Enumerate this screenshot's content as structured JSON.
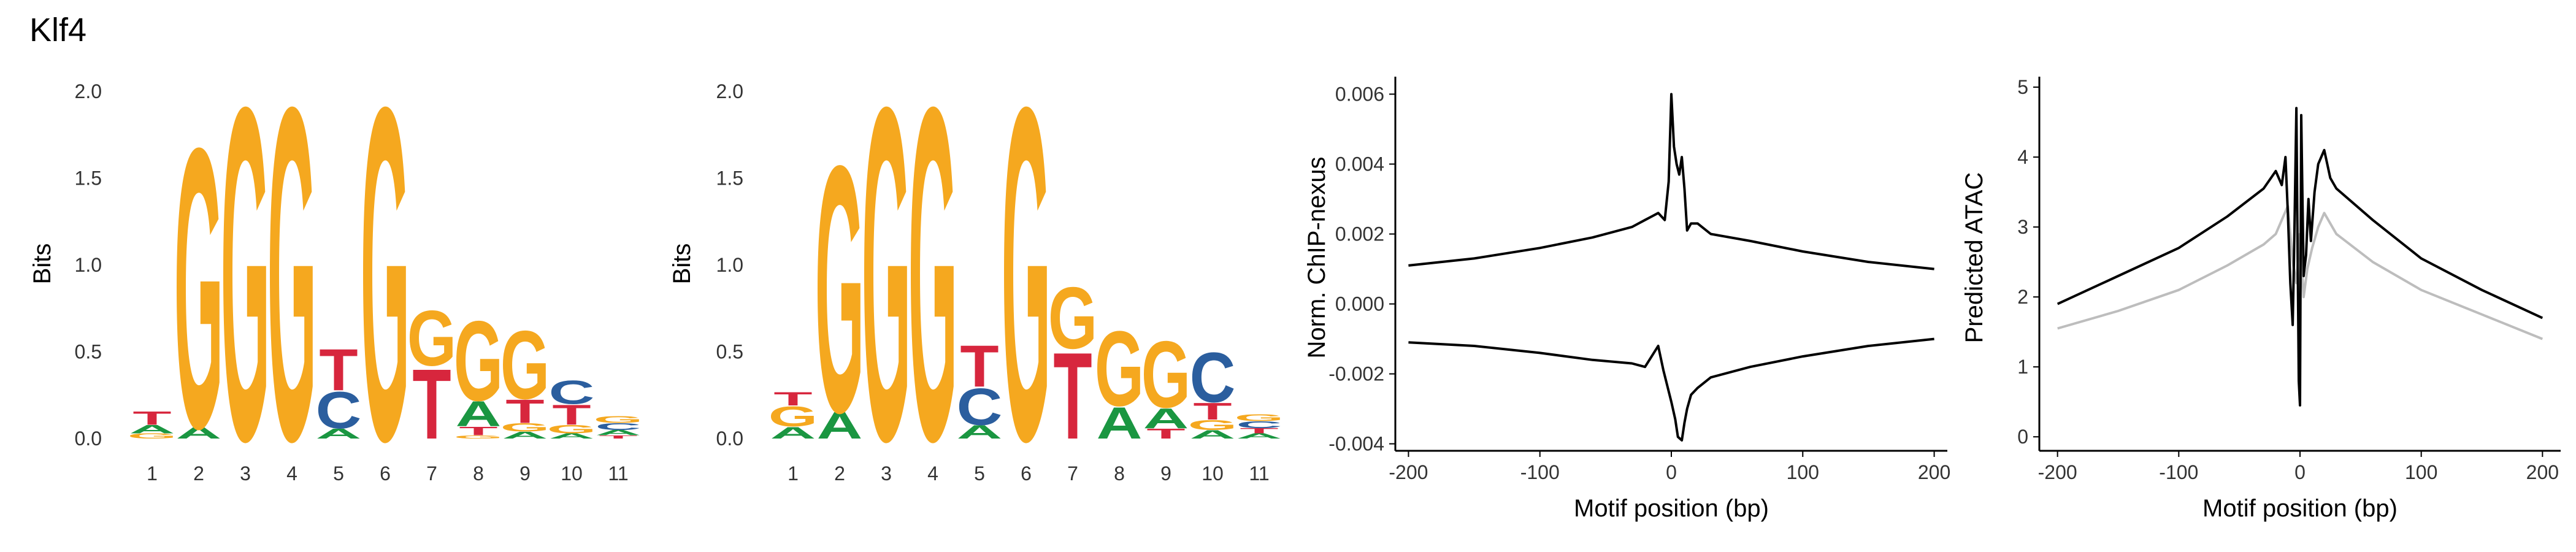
{
  "figure": {
    "title": "Klf4"
  },
  "chart_data": [
    {
      "type": "sequence-logo",
      "ylabel": "Bits",
      "ylim": [
        0,
        2.0
      ],
      "yticks": [
        "0.0",
        "0.5",
        "1.0",
        "1.5",
        "2.0"
      ],
      "xticks": [
        "1",
        "2",
        "3",
        "4",
        "5",
        "6",
        "7",
        "8",
        "9",
        "10",
        "11"
      ],
      "colors": {
        "A": "#1a9641",
        "C": "#2b5e9e",
        "G": "#f5a81f",
        "T": "#d7263d"
      },
      "positions": [
        [
          [
            "G",
            0.03
          ],
          [
            "A",
            0.05
          ],
          [
            "T",
            0.08
          ]
        ],
        [
          [
            "A",
            0.07
          ],
          [
            "G",
            1.68
          ]
        ],
        [
          [
            "G",
            2.0
          ]
        ],
        [
          [
            "G",
            2.0
          ]
        ],
        [
          [
            "A",
            0.06
          ],
          [
            "C",
            0.22
          ],
          [
            "T",
            0.25
          ]
        ],
        [
          [
            "G",
            2.0
          ]
        ],
        [
          [
            "T",
            0.42
          ],
          [
            "G",
            0.33
          ]
        ],
        [
          [
            "G",
            0.02
          ],
          [
            "T",
            0.05
          ],
          [
            "A",
            0.15
          ],
          [
            "G",
            0.48
          ]
        ],
        [
          [
            "A",
            0.04
          ],
          [
            "G",
            0.05
          ],
          [
            "T",
            0.14
          ],
          [
            "G",
            0.41
          ]
        ],
        [
          [
            "A",
            0.03
          ],
          [
            "G",
            0.05
          ],
          [
            "T",
            0.12
          ],
          [
            "C",
            0.14
          ]
        ],
        [
          [
            "T",
            0.02
          ],
          [
            "A",
            0.03
          ],
          [
            "C",
            0.04
          ],
          [
            "G",
            0.04
          ]
        ]
      ]
    },
    {
      "type": "sequence-logo",
      "ylabel": "Bits",
      "ylim": [
        0,
        2.0
      ],
      "yticks": [
        "0.0",
        "0.5",
        "1.0",
        "1.5",
        "2.0"
      ],
      "xticks": [
        "1",
        "2",
        "3",
        "4",
        "5",
        "6",
        "7",
        "8",
        "9",
        "10",
        "11"
      ],
      "colors": {
        "A": "#1a9641",
        "C": "#2b5e9e",
        "G": "#f5a81f",
        "T": "#d7263d"
      },
      "positions": [
        [
          [
            "A",
            0.07
          ],
          [
            "G",
            0.12
          ],
          [
            "T",
            0.08
          ]
        ],
        [
          [
            "A",
            0.16
          ],
          [
            "G",
            1.48
          ]
        ],
        [
          [
            "G",
            2.0
          ]
        ],
        [
          [
            "G",
            2.0
          ]
        ],
        [
          [
            "A",
            0.08
          ],
          [
            "C",
            0.22
          ],
          [
            "T",
            0.25
          ]
        ],
        [
          [
            "G",
            2.0
          ]
        ],
        [
          [
            "T",
            0.52
          ],
          [
            "G",
            0.37
          ]
        ],
        [
          [
            "A",
            0.19
          ],
          [
            "G",
            0.45
          ]
        ],
        [
          [
            "T",
            0.06
          ],
          [
            "A",
            0.12
          ],
          [
            "G",
            0.4
          ]
        ],
        [
          [
            "A",
            0.05
          ],
          [
            "G",
            0.06
          ],
          [
            "T",
            0.1
          ],
          [
            "C",
            0.3
          ]
        ],
        [
          [
            "A",
            0.03
          ],
          [
            "T",
            0.03
          ],
          [
            "C",
            0.04
          ],
          [
            "G",
            0.04
          ]
        ]
      ]
    },
    {
      "type": "line",
      "xlabel": "Motif position (bp)",
      "ylabel": "Norm. ChIP-nexus",
      "xlim": [
        -210,
        210
      ],
      "ylim": [
        -0.0042,
        0.0065
      ],
      "xticks": [
        -200,
        -100,
        0,
        100,
        200
      ],
      "xticklabels": [
        "-200",
        "-100",
        "0",
        "100",
        "200"
      ],
      "yticks": [
        -0.004,
        -0.002,
        0.0,
        0.002,
        0.004,
        0.006
      ],
      "yticklabels": [
        "-0.004",
        "-0.002",
        "0.000",
        "0.002",
        "0.004",
        "0.006"
      ],
      "series": [
        {
          "color": "#000000",
          "x": [
            -200,
            -150,
            -100,
            -60,
            -30,
            -20,
            -15,
            -10,
            -5,
            -2,
            0,
            2,
            4,
            6,
            8,
            10,
            12,
            15,
            20,
            30,
            60,
            100,
            150,
            200
          ],
          "y": [
            0.0011,
            0.0013,
            0.0016,
            0.0019,
            0.0022,
            0.0024,
            0.0025,
            0.0026,
            0.0024,
            0.0035,
            0.006,
            0.0045,
            0.004,
            0.0037,
            0.0042,
            0.0033,
            0.0021,
            0.0023,
            0.0023,
            0.002,
            0.0018,
            0.0015,
            0.0012,
            0.001
          ]
        },
        {
          "color": "#000000",
          "x": [
            -200,
            -150,
            -100,
            -60,
            -30,
            -20,
            -15,
            -10,
            -6,
            -2,
            0,
            3,
            5,
            8,
            10,
            12,
            15,
            20,
            30,
            60,
            100,
            150,
            200
          ],
          "y": [
            -0.0011,
            -0.0012,
            -0.0014,
            -0.0016,
            -0.0017,
            -0.0018,
            -0.0015,
            -0.0012,
            -0.0019,
            -0.0025,
            -0.0028,
            -0.0033,
            -0.0038,
            -0.0039,
            -0.0034,
            -0.003,
            -0.0026,
            -0.0024,
            -0.0021,
            -0.0018,
            -0.0015,
            -0.0012,
            -0.001
          ]
        }
      ]
    },
    {
      "type": "line",
      "xlabel": "Motif position (bp)",
      "ylabel": "Predicted ATAC",
      "xlim": [
        -215,
        215
      ],
      "ylim": [
        -0.2,
        5.15
      ],
      "xticks": [
        -200,
        -100,
        0,
        100,
        200
      ],
      "xticklabels": [
        "-200",
        "-100",
        "0",
        "100",
        "200"
      ],
      "yticks": [
        0,
        1,
        2,
        3,
        4,
        5
      ],
      "yticklabels": [
        "0",
        "1",
        "2",
        "3",
        "4",
        "5"
      ],
      "series": [
        {
          "color": "#bdbdbd",
          "x": [
            -200,
            -150,
            -100,
            -60,
            -30,
            -20,
            -15,
            -10,
            -6,
            -3,
            0,
            3,
            6,
            10,
            15,
            20,
            25,
            30,
            60,
            100,
            150,
            200
          ],
          "y": [
            1.55,
            1.8,
            2.1,
            2.45,
            2.75,
            2.9,
            3.1,
            3.3,
            2.5,
            2.2,
            2.9,
            2.0,
            2.4,
            2.7,
            3.0,
            3.2,
            3.05,
            2.9,
            2.5,
            2.1,
            1.75,
            1.4
          ]
        },
        {
          "color": "#000000",
          "x": [
            -200,
            -150,
            -100,
            -60,
            -30,
            -20,
            -15,
            -12,
            -10,
            -8,
            -6,
            -5,
            -3,
            -1,
            0,
            1,
            3,
            5,
            7,
            9,
            12,
            15,
            20,
            25,
            30,
            60,
            100,
            150,
            200
          ],
          "y": [
            1.9,
            2.3,
            2.7,
            3.15,
            3.55,
            3.8,
            3.6,
            4.0,
            3.2,
            2.2,
            1.6,
            2.5,
            4.7,
            0.8,
            0.45,
            4.6,
            2.3,
            2.6,
            3.4,
            2.8,
            3.5,
            3.9,
            4.1,
            3.7,
            3.55,
            3.1,
            2.55,
            2.1,
            1.7
          ]
        }
      ]
    }
  ]
}
